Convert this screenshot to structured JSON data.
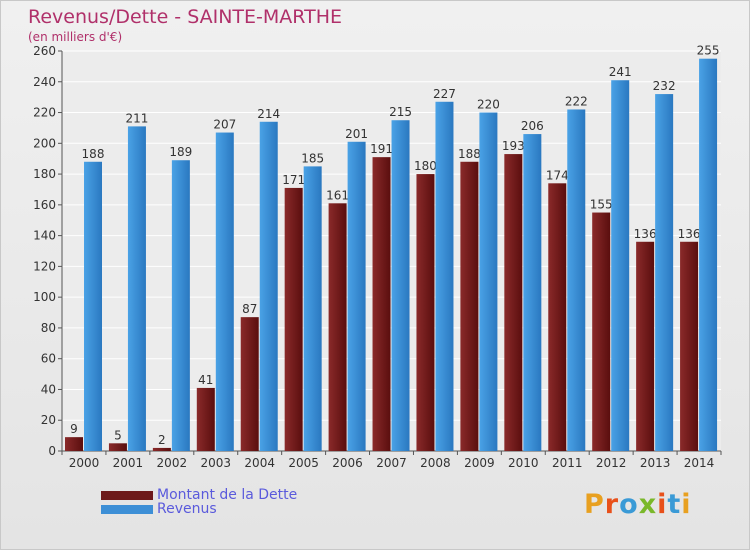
{
  "header": {
    "title": "Revenus/Dette - SAINTE-MARTHE",
    "subtitle": "(en milliers d'€)"
  },
  "colors": {
    "dette": "#6e1a1a",
    "revenus": "#3d8fd6",
    "title": "#b0306a",
    "legend_text": "#5a5adc"
  },
  "legend": {
    "items": [
      {
        "label": "Montant de la Dette",
        "color": "#6e1a1a"
      },
      {
        "label": "Revenus",
        "color": "#3d8fd6"
      }
    ],
    "position": "bottom-left"
  },
  "logo": {
    "text": "Proxiti"
  },
  "chart_data": {
    "type": "bar",
    "title": "Revenus/Dette - SAINTE-MARTHE",
    "subtitle": "(en milliers d'€)",
    "categories": [
      "2000",
      "2001",
      "2002",
      "2003",
      "2004",
      "2005",
      "2006",
      "2007",
      "2008",
      "2009",
      "2010",
      "2011",
      "2012",
      "2013",
      "2014"
    ],
    "series": [
      {
        "name": "Montant de la Dette",
        "values": [
          9,
          5,
          2,
          41,
          87,
          171,
          161,
          191,
          180,
          188,
          193,
          174,
          155,
          136,
          136
        ]
      },
      {
        "name": "Revenus",
        "values": [
          188,
          211,
          189,
          207,
          214,
          185,
          201,
          215,
          227,
          220,
          206,
          222,
          241,
          232,
          255
        ]
      }
    ],
    "ylim": [
      0,
      260
    ],
    "yticks": [
      0,
      20,
      40,
      60,
      80,
      100,
      120,
      140,
      160,
      180,
      200,
      220,
      240,
      260
    ],
    "grid": true,
    "legend_position": "bottom-left"
  }
}
